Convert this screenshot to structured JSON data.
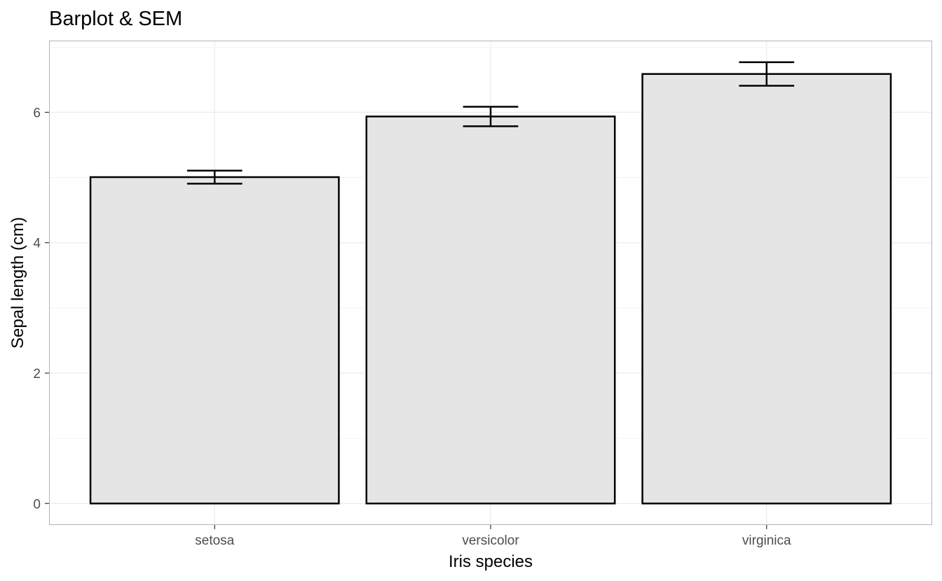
{
  "chart_data": {
    "type": "bar",
    "title": "Barplot & SEM",
    "xlabel": "Iris species",
    "ylabel": "Sepal length (cm)",
    "categories": [
      "setosa",
      "versicolor",
      "virginica"
    ],
    "values": [
      5.006,
      5.936,
      6.588
    ],
    "error": [
      0.1,
      0.15,
      0.18
    ],
    "ylim": [
      -0.33,
      7.1
    ],
    "yticks": [
      0,
      2,
      4,
      6
    ],
    "grid": true,
    "colors": {
      "bar_fill": "#e5e5e5",
      "bar_stroke": "#000000",
      "grid": "#ebebeb",
      "panel_border": "#b3b3b3",
      "tick_text": "#4d4d4d"
    }
  }
}
